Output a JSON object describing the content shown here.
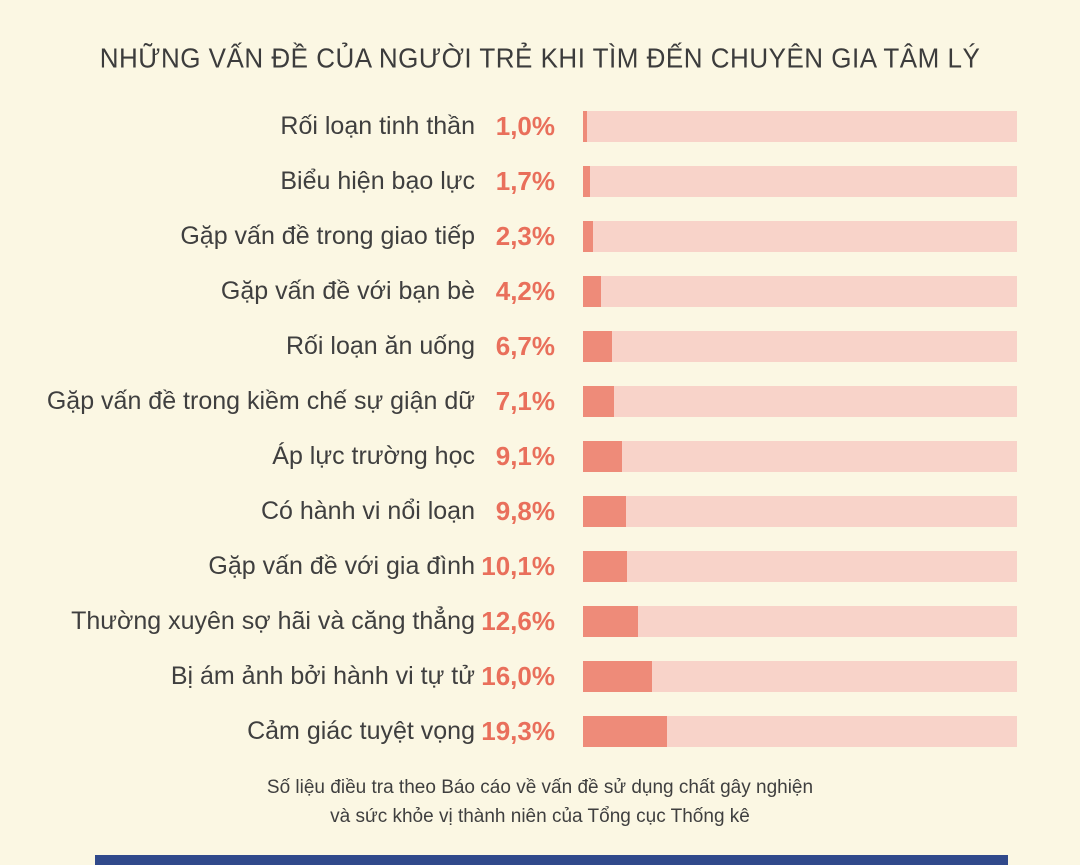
{
  "title": "NHỮNG VẤN ĐỀ CỦA NGƯỜI TRẺ KHI TÌM ĐẾN CHUYÊN GIA TÂM LÝ",
  "footer": {
    "line1": "Số liệu điều tra theo Báo cáo về vấn đề sử dụng chất gây nghiện",
    "line2": "và sức khỏe vị thành niên của Tổng cục Thống kê"
  },
  "colors": {
    "background": "#fbf7e3",
    "bar_track": "#f8d3c9",
    "bar_fill": "#ee8b79",
    "value_text": "#e96f5b",
    "label_text": "#3f3f3f",
    "bottom_strip": "#30498b"
  },
  "chart_data": {
    "type": "bar",
    "orientation": "horizontal",
    "title": "NHỮNG VẤN ĐỀ CỦA NGƯỜI TRẺ KHI TÌM ĐẾN CHUYÊN GIA TÂM LÝ",
    "xlabel": "",
    "ylabel": "",
    "xlim": [
      0,
      100
    ],
    "grid": false,
    "legend": false,
    "categories": [
      "Rối loạn tinh thần",
      "Biểu hiện bạo lực",
      "Gặp vấn đề trong giao tiếp",
      "Gặp vấn đề với bạn bè",
      "Rối loạn ăn uống",
      "Gặp vấn đề trong kiềm chế sự giận dữ",
      "Áp lực trường học",
      "Có hành vi nổi loạn",
      "Gặp vấn đề với gia đình",
      "Thường xuyên sợ hãi và căng thẳng",
      "Bị ám ảnh bởi hành vi tự tử",
      "Cảm giác tuyệt vọng"
    ],
    "values": [
      1.0,
      1.7,
      2.3,
      4.2,
      6.7,
      7.1,
      9.1,
      9.8,
      10.1,
      12.6,
      16.0,
      19.3
    ],
    "value_labels": [
      "1,0%",
      "1,7%",
      "2,3%",
      "4,2%",
      "6,7%",
      "7,1%",
      "9,1%",
      "9,8%",
      "10,1%",
      "12,6%",
      "16,0%",
      "19,3%"
    ]
  }
}
